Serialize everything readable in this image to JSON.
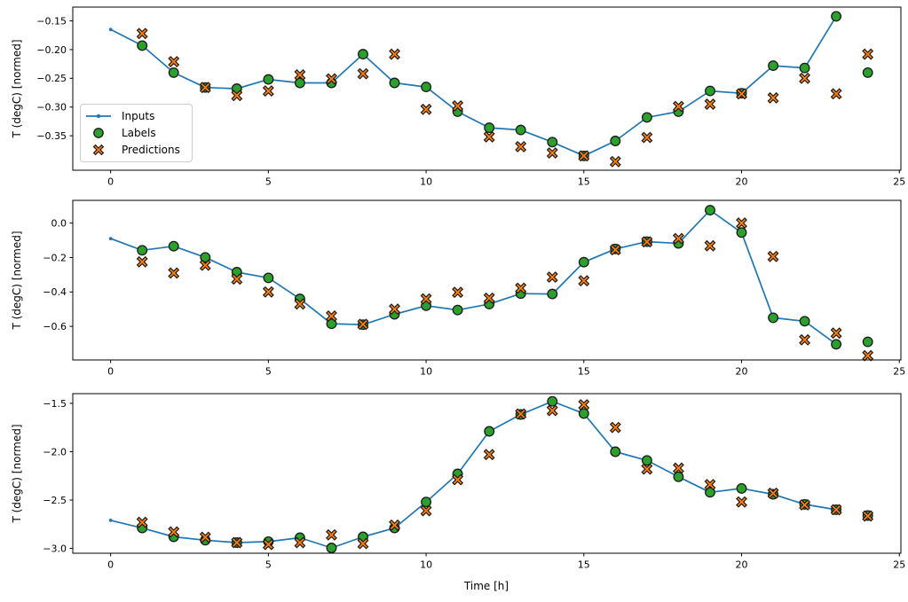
{
  "figure": {
    "xlabel": "Time [h]",
    "ylabel": "T (degC) [normed]",
    "legend": {
      "items": [
        "Inputs",
        "Labels",
        "Predictions"
      ]
    },
    "colors": {
      "inputs": "#1f77b4",
      "labels": "#2ca02c",
      "predictions": "#ff7f0e",
      "marker_edge": "#1a1a1a",
      "axis": "#000000",
      "legend_border": "#cccccc",
      "background": "#ffffff"
    }
  },
  "chart_data": [
    {
      "type": "line+scatter",
      "title": "",
      "xlabel": "",
      "ylabel": "T (degC) [normed]",
      "x_range": [
        -1.2,
        25.05
      ],
      "ylim": [
        -0.41,
        -0.126
      ],
      "xticks": [
        0,
        5,
        10,
        15,
        20,
        25
      ],
      "ytick_values": [
        -0.15,
        -0.2,
        -0.25,
        -0.3,
        -0.35
      ],
      "ytick_labels": [
        "−0.15",
        "−0.20",
        "−0.25",
        "−0.30",
        "−0.35"
      ],
      "grid": false,
      "legend_position": "center-left",
      "series": [
        {
          "name": "Inputs",
          "kind": "line",
          "marker": "point",
          "color": "#1f77b4",
          "x": [
            0,
            1,
            2,
            3,
            4,
            5,
            6,
            7,
            8,
            9,
            10,
            11,
            12,
            13,
            14,
            15,
            16,
            17,
            18,
            19,
            20,
            21,
            22,
            23
          ],
          "y": [
            -0.165,
            -0.193,
            -0.24,
            -0.266,
            -0.268,
            -0.252,
            -0.258,
            -0.258,
            -0.208,
            -0.258,
            -0.265,
            -0.308,
            -0.336,
            -0.34,
            -0.361,
            -0.385,
            -0.359,
            -0.318,
            -0.308,
            -0.272,
            -0.276,
            -0.228,
            -0.232,
            -0.142
          ]
        },
        {
          "name": "Labels",
          "kind": "scatter",
          "marker": "circle",
          "color": "#2ca02c",
          "x": [
            1,
            2,
            3,
            4,
            5,
            6,
            7,
            8,
            9,
            10,
            11,
            12,
            13,
            14,
            15,
            16,
            17,
            18,
            19,
            20,
            21,
            22,
            23,
            24
          ],
          "y": [
            -0.193,
            -0.24,
            -0.266,
            -0.268,
            -0.252,
            -0.258,
            -0.258,
            -0.208,
            -0.258,
            -0.265,
            -0.308,
            -0.336,
            -0.34,
            -0.361,
            -0.385,
            -0.359,
            -0.318,
            -0.308,
            -0.272,
            -0.276,
            -0.228,
            -0.232,
            -0.142,
            -0.24
          ]
        },
        {
          "name": "Predictions",
          "kind": "scatter",
          "marker": "X",
          "color": "#ff7f0e",
          "x": [
            1,
            2,
            3,
            4,
            5,
            6,
            7,
            8,
            9,
            10,
            11,
            12,
            13,
            14,
            15,
            16,
            17,
            18,
            19,
            20,
            21,
            22,
            23,
            24
          ],
          "y": [
            -0.172,
            -0.221,
            -0.266,
            -0.28,
            -0.272,
            -0.244,
            -0.251,
            -0.242,
            -0.208,
            -0.304,
            -0.298,
            -0.352,
            -0.369,
            -0.38,
            -0.385,
            -0.395,
            -0.353,
            -0.299,
            -0.295,
            -0.277,
            -0.284,
            -0.25,
            -0.277,
            -0.208
          ]
        }
      ]
    },
    {
      "type": "line+scatter",
      "title": "",
      "xlabel": "",
      "ylabel": "T (degC) [normed]",
      "x_range": [
        -1.2,
        25.05
      ],
      "ylim": [
        -0.795,
        0.132
      ],
      "xticks": [
        0,
        5,
        10,
        15,
        20,
        25
      ],
      "ytick_values": [
        0.0,
        -0.2,
        -0.4,
        -0.6
      ],
      "ytick_labels": [
        "0.0",
        "−0.2",
        "−0.4",
        "−0.6"
      ],
      "grid": false,
      "series": [
        {
          "name": "Inputs",
          "kind": "line",
          "marker": "point",
          "color": "#1f77b4",
          "x": [
            0,
            1,
            2,
            3,
            4,
            5,
            6,
            7,
            8,
            9,
            10,
            11,
            12,
            13,
            14,
            15,
            16,
            17,
            18,
            19,
            20,
            21,
            22,
            23
          ],
          "y": [
            -0.09,
            -0.158,
            -0.134,
            -0.199,
            -0.285,
            -0.318,
            -0.44,
            -0.585,
            -0.59,
            -0.53,
            -0.48,
            -0.505,
            -0.47,
            -0.41,
            -0.412,
            -0.227,
            -0.15,
            -0.108,
            -0.118,
            0.075,
            -0.055,
            -0.55,
            -0.57,
            -0.704
          ]
        },
        {
          "name": "Labels",
          "kind": "scatter",
          "marker": "circle",
          "color": "#2ca02c",
          "x": [
            1,
            2,
            3,
            4,
            5,
            6,
            7,
            8,
            9,
            10,
            11,
            12,
            13,
            14,
            15,
            16,
            17,
            18,
            19,
            20,
            21,
            22,
            23,
            24
          ],
          "y": [
            -0.158,
            -0.134,
            -0.199,
            -0.285,
            -0.318,
            -0.44,
            -0.585,
            -0.59,
            -0.53,
            -0.48,
            -0.505,
            -0.47,
            -0.41,
            -0.412,
            -0.227,
            -0.15,
            -0.108,
            -0.118,
            0.075,
            -0.055,
            -0.55,
            -0.57,
            -0.704,
            -0.69
          ]
        },
        {
          "name": "Predictions",
          "kind": "scatter",
          "marker": "X",
          "color": "#ff7f0e",
          "x": [
            1,
            2,
            3,
            4,
            5,
            6,
            7,
            8,
            9,
            10,
            11,
            12,
            13,
            14,
            15,
            16,
            17,
            18,
            19,
            20,
            21,
            22,
            23,
            24
          ],
          "y": [
            -0.225,
            -0.29,
            -0.245,
            -0.325,
            -0.4,
            -0.47,
            -0.54,
            -0.588,
            -0.5,
            -0.44,
            -0.402,
            -0.436,
            -0.378,
            -0.314,
            -0.335,
            -0.155,
            -0.109,
            -0.09,
            -0.132,
            0.0,
            -0.194,
            -0.678,
            -0.639,
            -0.77
          ]
        }
      ]
    },
    {
      "type": "line+scatter",
      "title": "",
      "xlabel": "Time [h]",
      "ylabel": "T (degC) [normed]",
      "x_range": [
        -1.2,
        25.05
      ],
      "ylim": [
        -3.05,
        -1.4
      ],
      "xticks": [
        0,
        5,
        10,
        15,
        20,
        25
      ],
      "ytick_values": [
        -1.5,
        -2.0,
        -2.5,
        -3.0
      ],
      "ytick_labels": [
        "−1.5",
        "−2.0",
        "−2.5",
        "−3.0"
      ],
      "grid": false,
      "series": [
        {
          "name": "Inputs",
          "kind": "line",
          "marker": "point",
          "color": "#1f77b4",
          "x": [
            0,
            1,
            2,
            3,
            4,
            5,
            6,
            7,
            8,
            9,
            10,
            11,
            12,
            13,
            14,
            15,
            16,
            17,
            18,
            19,
            20,
            21,
            22,
            23
          ],
          "y": [
            -2.71,
            -2.79,
            -2.88,
            -2.915,
            -2.94,
            -2.93,
            -2.89,
            -2.995,
            -2.88,
            -2.79,
            -2.52,
            -2.23,
            -1.79,
            -1.615,
            -1.48,
            -1.605,
            -2.0,
            -2.09,
            -2.26,
            -2.42,
            -2.38,
            -2.44,
            -2.545,
            -2.6
          ]
        },
        {
          "name": "Labels",
          "kind": "scatter",
          "marker": "circle",
          "color": "#2ca02c",
          "x": [
            1,
            2,
            3,
            4,
            5,
            6,
            7,
            8,
            9,
            10,
            11,
            12,
            13,
            14,
            15,
            16,
            17,
            18,
            19,
            20,
            21,
            22,
            23,
            24
          ],
          "y": [
            -2.79,
            -2.88,
            -2.915,
            -2.94,
            -2.93,
            -2.89,
            -2.995,
            -2.88,
            -2.79,
            -2.52,
            -2.23,
            -1.79,
            -1.615,
            -1.48,
            -1.605,
            -2.0,
            -2.09,
            -2.26,
            -2.42,
            -2.38,
            -2.44,
            -2.545,
            -2.6,
            -2.66
          ]
        },
        {
          "name": "Predictions",
          "kind": "scatter",
          "marker": "X",
          "color": "#ff7f0e",
          "x": [
            1,
            2,
            3,
            4,
            5,
            6,
            7,
            8,
            9,
            10,
            11,
            12,
            13,
            14,
            15,
            16,
            17,
            18,
            19,
            20,
            21,
            22,
            23,
            24
          ],
          "y": [
            -2.73,
            -2.83,
            -2.885,
            -2.94,
            -2.96,
            -2.94,
            -2.86,
            -2.95,
            -2.76,
            -2.61,
            -2.29,
            -2.03,
            -1.61,
            -1.575,
            -1.515,
            -1.75,
            -2.18,
            -2.17,
            -2.34,
            -2.52,
            -2.43,
            -2.55,
            -2.6,
            -2.665
          ]
        }
      ]
    }
  ]
}
